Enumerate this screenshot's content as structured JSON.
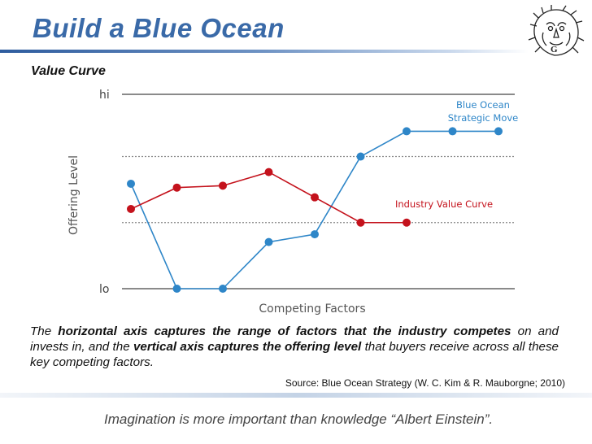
{
  "header": {
    "title": "Build a Blue Ocean",
    "subtitle": "Value Curve"
  },
  "caption": {
    "p1": "The ",
    "b1": "horizontal axis captures the range of factors that the industry competes",
    "p2": " on and invests in, and the ",
    "b2": "vertical axis captures the offering level",
    "p3": " that buyers receive across all these key competing factors."
  },
  "source": "Source: Blue Ocean Strategy (W. C. Kim  & R. Mauborgne; 2010)",
  "footer": {
    "quote": "Imagination is more important than knowledge “Albert Einstein”."
  },
  "logo": {
    "icon": "lion-head-logo-icon",
    "monogram": "G"
  },
  "colors": {
    "title": "#3a6aa8",
    "blue_series": "#2e86c8",
    "red_series": "#c4121c"
  },
  "chart_data": {
    "type": "line",
    "xlabel": "Competing Factors",
    "ylabel": "Offering Level",
    "ytick_labels": [
      "lo",
      "hi"
    ],
    "ylim": [
      0,
      10
    ],
    "x": [
      1,
      2,
      3,
      4,
      5,
      6,
      7,
      8,
      9
    ],
    "grid": "dotted horizontal reference lines",
    "series": [
      {
        "name": "Blue Ocean Strategic Move",
        "color": "#2e86c8",
        "values": [
          5.4,
          0,
          0,
          2.4,
          2.8,
          6.8,
          8.1,
          8.1,
          8.1
        ]
      },
      {
        "name": "Industry Value Curve",
        "color": "#c4121c",
        "values": [
          4.1,
          5.2,
          5.3,
          6.0,
          4.7,
          3.4,
          3.4,
          null,
          null
        ]
      }
    ]
  }
}
